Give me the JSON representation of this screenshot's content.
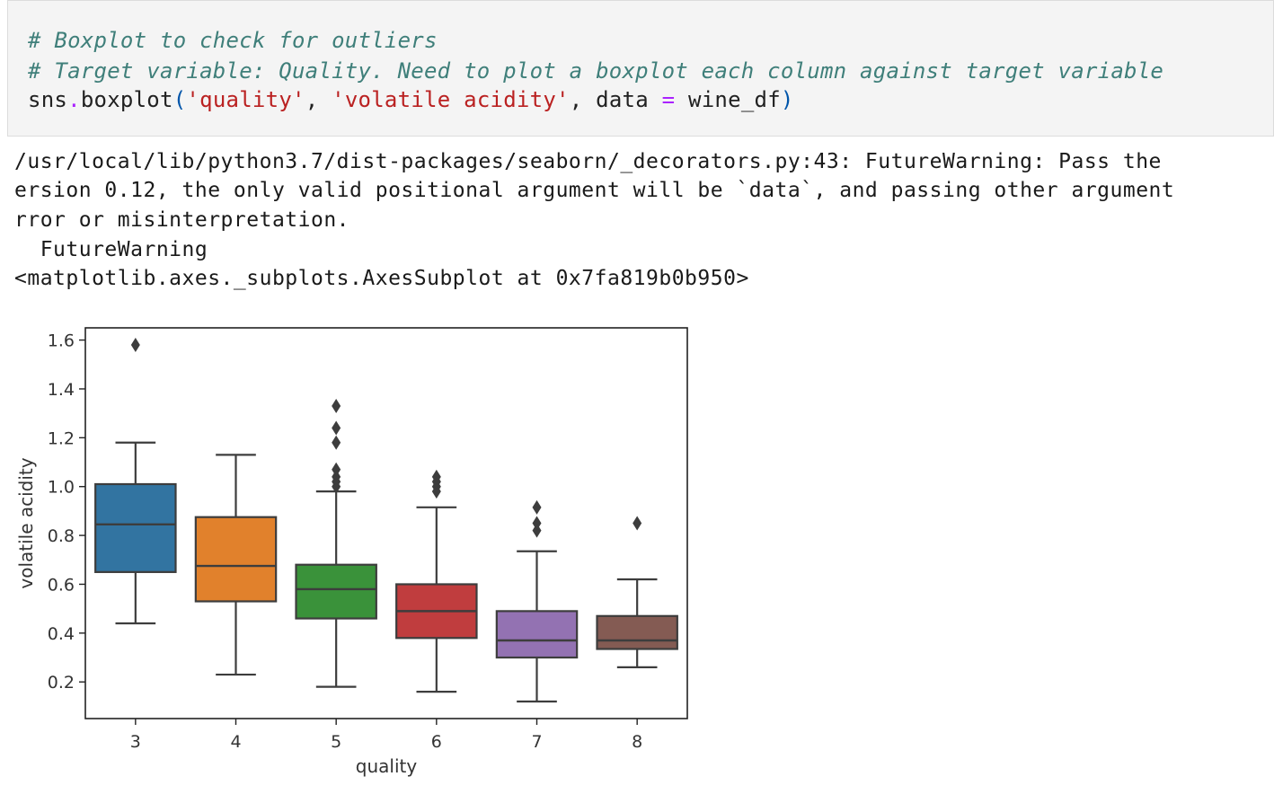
{
  "code_cell": {
    "line1": "# Boxplot to check for outliers",
    "line2": "# Target variable: Quality. Need to plot a boxplot each column against target variable",
    "line3": {
      "prefix": "sns",
      "dot": ".",
      "func": "boxplot",
      "open_paren": "(",
      "arg1": "'quality'",
      "comma1": ", ",
      "arg2": "'volatile acidity'",
      "comma2": ", data ",
      "eq": "=",
      "arg3": " wine_df",
      "close_paren": ")"
    }
  },
  "output": {
    "warning_line1": "/usr/local/lib/python3.7/dist-packages/seaborn/_decorators.py:43: FutureWarning: Pass the",
    "warning_line2": "ersion 0.12, the only valid positional argument will be `data`, and passing other argument",
    "warning_line3": "rror or misinterpretation.",
    "warning_line4": "  FutureWarning",
    "result_line": "<matplotlib.axes._subplots.AxesSubplot at 0x7fa819b0b950>"
  },
  "chart_data": {
    "type": "boxplot",
    "xlabel": "quality",
    "ylabel": "volatile acidity",
    "ylim": [
      0.05,
      1.65
    ],
    "yticks": [
      0.2,
      0.4,
      0.6,
      0.8,
      1.0,
      1.2,
      1.4,
      1.6
    ],
    "ytick_labels": [
      "0.2",
      "0.4",
      "0.6",
      "0.8",
      "1.0",
      "1.2",
      "1.4",
      "1.6"
    ],
    "categories": [
      "3",
      "4",
      "5",
      "6",
      "7",
      "8"
    ],
    "boxes": [
      {
        "category": "3",
        "whisker_low": 0.44,
        "q1": 0.65,
        "median": 0.845,
        "q3": 1.01,
        "whisker_high": 1.18,
        "outliers": [
          1.58
        ],
        "color": "#3274a1"
      },
      {
        "category": "4",
        "whisker_low": 0.23,
        "q1": 0.53,
        "median": 0.675,
        "q3": 0.875,
        "whisker_high": 1.13,
        "outliers": [],
        "color": "#e1812c"
      },
      {
        "category": "5",
        "whisker_low": 0.18,
        "q1": 0.46,
        "median": 0.58,
        "q3": 0.68,
        "whisker_high": 0.98,
        "outliers": [
          1.0,
          1.02,
          1.04,
          1.07,
          1.18,
          1.24,
          1.33
        ],
        "color": "#3a923a"
      },
      {
        "category": "6",
        "whisker_low": 0.16,
        "q1": 0.38,
        "median": 0.49,
        "q3": 0.6,
        "whisker_high": 0.915,
        "outliers": [
          0.98,
          1.0,
          1.02,
          1.04
        ],
        "color": "#c03d3e"
      },
      {
        "category": "7",
        "whisker_low": 0.12,
        "q1": 0.3,
        "median": 0.37,
        "q3": 0.49,
        "whisker_high": 0.735,
        "outliers": [
          0.82,
          0.85,
          0.915
        ],
        "color": "#9372b2"
      },
      {
        "category": "8",
        "whisker_low": 0.26,
        "q1": 0.335,
        "median": 0.37,
        "q3": 0.47,
        "whisker_high": 0.62,
        "outliers": [
          0.85
        ],
        "color": "#845b53"
      }
    ]
  }
}
